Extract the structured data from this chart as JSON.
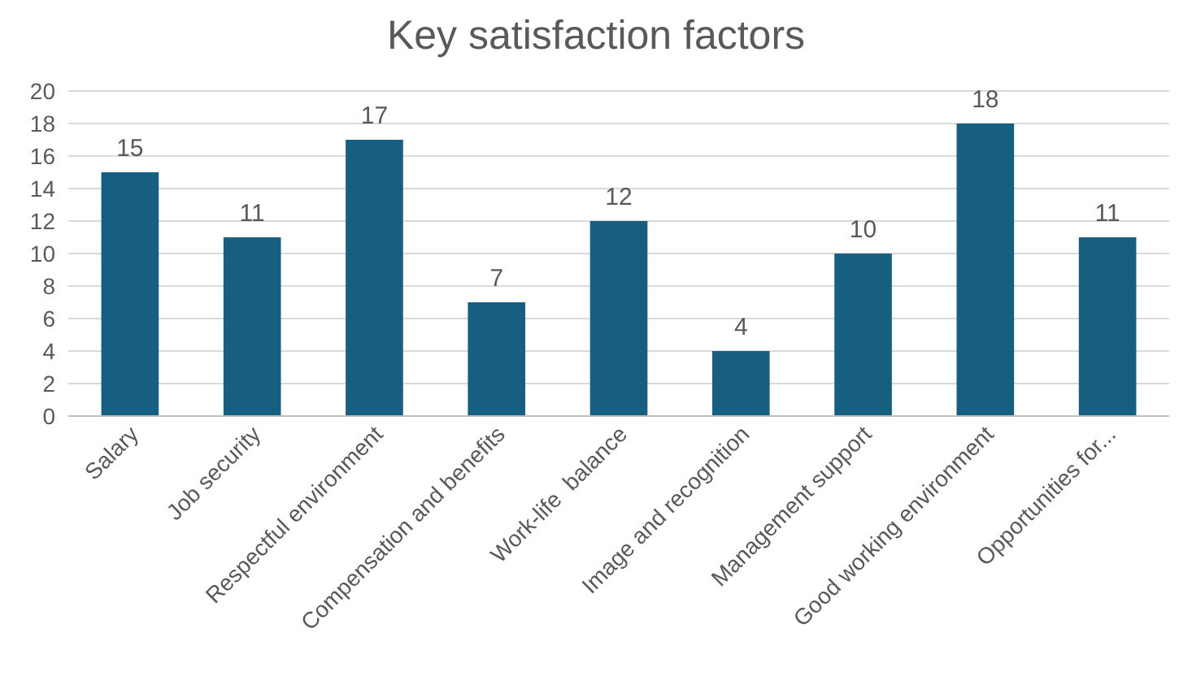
{
  "chart_data": {
    "type": "bar",
    "title": "Key satisfaction factors",
    "categories": [
      "Salary",
      "Job security",
      "Respectful environment",
      "Compensation and benefits",
      "Work-life  balance",
      "Image and recognition",
      "Management support",
      "Good working environment",
      "Opportunities for..."
    ],
    "values": [
      15,
      11,
      17,
      7,
      12,
      4,
      10,
      18,
      11
    ],
    "color": "#165f80",
    "ylim": [
      0,
      20
    ],
    "yticks": [
      0,
      2,
      4,
      6,
      8,
      10,
      12,
      14,
      16,
      18,
      20
    ],
    "grid": "y",
    "data_labels": true
  }
}
